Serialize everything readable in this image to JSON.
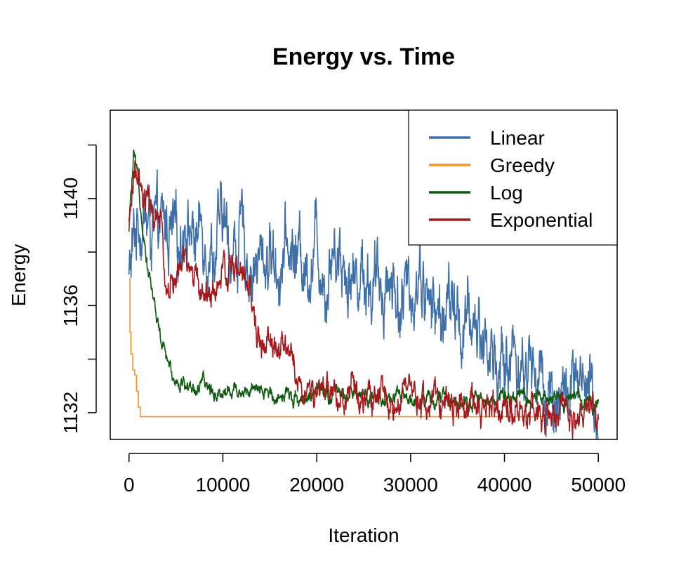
{
  "chart_data": {
    "type": "line",
    "title": "Energy vs. Time",
    "xlabel": "Iteration",
    "ylabel": "Energy",
    "xlim": [
      -2000,
      52000
    ],
    "ylim": [
      1131.0,
      1143.3
    ],
    "x_ticks": [
      0,
      10000,
      20000,
      30000,
      40000,
      50000
    ],
    "x_tick_labels": [
      "0",
      "10000",
      "20000",
      "30000",
      "40000",
      "50000"
    ],
    "y_ticks": [
      1132,
      1134,
      1136,
      1138,
      1140,
      1142
    ],
    "y_tick_labels": [
      "1132",
      "",
      "1136",
      "",
      "1140",
      ""
    ],
    "grid": false,
    "legend_position": "top-right",
    "series": [
      {
        "name": "Linear",
        "color": "#3E6FA8",
        "x": [
          0,
          1000,
          2000,
          3000,
          4000,
          5000,
          6000,
          7000,
          8000,
          9000,
          10000,
          11000,
          12000,
          13000,
          14000,
          15000,
          16000,
          17000,
          18000,
          19000,
          20000,
          21000,
          22000,
          23000,
          24000,
          25000,
          26000,
          27000,
          28000,
          29000,
          30000,
          31000,
          32000,
          33000,
          34000,
          35000,
          36000,
          37000,
          38000,
          39000,
          40000,
          41000,
          42000,
          43000,
          44000,
          45000,
          46000,
          47000,
          48000,
          49000,
          50000
        ],
        "y": [
          1137.0,
          1139.5,
          1139.0,
          1138.5,
          1139.0,
          1138.0,
          1139.5,
          1138.5,
          1139.0,
          1138.0,
          1139.0,
          1138.0,
          1138.5,
          1137.5,
          1137.5,
          1138.0,
          1137.5,
          1138.0,
          1138.0,
          1137.5,
          1138.5,
          1137.0,
          1138.5,
          1137.5,
          1137.0,
          1137.5,
          1136.5,
          1137.0,
          1137.0,
          1136.0,
          1136.5,
          1137.5,
          1136.0,
          1135.5,
          1136.0,
          1135.5,
          1135.0,
          1135.5,
          1134.5,
          1134.0,
          1133.5,
          1134.5,
          1133.5,
          1133.8,
          1133.0,
          1132.8,
          1132.6,
          1132.8,
          1132.6,
          1132.4,
          1132.0
        ]
      },
      {
        "name": "Greedy",
        "color": "#F7931E",
        "x": [
          0,
          100,
          200,
          400,
          600,
          800,
          1000,
          1200,
          2000,
          10000,
          20000,
          30000,
          40000,
          46000
        ],
        "y": [
          1137.0,
          1135.0,
          1134.2,
          1133.6,
          1133.4,
          1132.8,
          1132.2,
          1131.85,
          1131.85,
          1131.85,
          1131.85,
          1131.85,
          1131.85,
          1131.85
        ]
      },
      {
        "name": "Log",
        "color": "#0E5A0E",
        "x": [
          0,
          500,
          1000,
          1500,
          2000,
          2500,
          3000,
          3500,
          4000,
          4500,
          5000,
          6000,
          7000,
          8000,
          9000,
          10000,
          12000,
          14000,
          16000,
          18000,
          20000,
          22000,
          24000,
          26000,
          28000,
          30000,
          32000,
          34000,
          36000,
          38000,
          40000,
          42000,
          44000,
          46000,
          48000,
          50000
        ],
        "y": [
          1139.0,
          1141.5,
          1140.5,
          1139.0,
          1137.5,
          1136.5,
          1135.5,
          1134.5,
          1134.0,
          1133.5,
          1133.3,
          1133.0,
          1132.9,
          1133.0,
          1132.8,
          1132.8,
          1132.9,
          1132.7,
          1132.7,
          1132.6,
          1132.7,
          1132.6,
          1132.6,
          1132.6,
          1132.5,
          1132.5,
          1132.5,
          1132.5,
          1132.5,
          1132.4,
          1132.6,
          1132.5,
          1132.5,
          1132.5,
          1132.5,
          1132.4
        ]
      },
      {
        "name": "Exponential",
        "color": "#A5191C",
        "x": [
          0,
          500,
          1000,
          1500,
          2000,
          2500,
          3000,
          3500,
          4000,
          5000,
          6000,
          7000,
          8000,
          9000,
          10000,
          11000,
          12000,
          13000,
          13500,
          14000,
          15000,
          16000,
          17000,
          17500,
          18000,
          19000,
          20000,
          22000,
          24000,
          26000,
          28000,
          30000,
          32000,
          34000,
          36000,
          38000,
          40000,
          42000,
          43000,
          44000,
          46000,
          48000,
          50000
        ],
        "y": [
          1138.5,
          1141.0,
          1140.5,
          1139.5,
          1140.0,
          1139.0,
          1139.5,
          1138.5,
          1136.5,
          1137.0,
          1137.5,
          1137.0,
          1136.5,
          1136.5,
          1137.0,
          1137.5,
          1137.0,
          1136.5,
          1135.0,
          1134.5,
          1134.5,
          1134.2,
          1134.4,
          1133.8,
          1133.0,
          1132.8,
          1132.7,
          1132.7,
          1132.6,
          1132.6,
          1132.5,
          1132.5,
          1132.4,
          1132.4,
          1132.3,
          1132.3,
          1132.2,
          1132.1,
          1131.9,
          1131.85,
          1131.85,
          1131.85,
          1131.85
        ]
      }
    ]
  }
}
